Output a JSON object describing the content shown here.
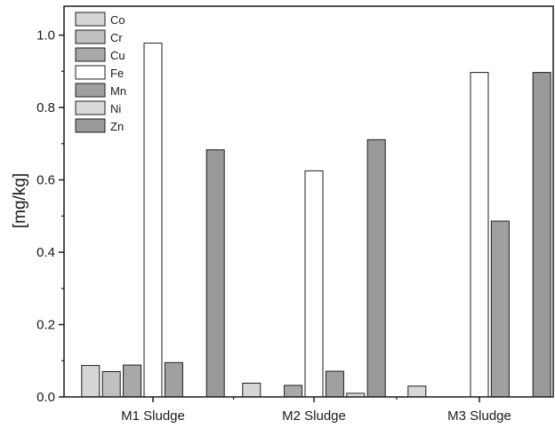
{
  "chart_data": {
    "type": "bar",
    "title": "",
    "xlabel": "",
    "ylabel": "[mg/kg]",
    "ylim": [
      0,
      1.08
    ],
    "yticks": [
      "0.0",
      "0.2",
      "0.4",
      "0.6",
      "0.8",
      "1.0"
    ],
    "categories": [
      "M1 Sludge",
      "M2 Sludge",
      "M3 Sludge"
    ],
    "legend_position": "top-left",
    "grid": false,
    "series": [
      {
        "name": "Co",
        "color": "#d6d6d6",
        "values": [
          0.087,
          0.038,
          0.03
        ]
      },
      {
        "name": "Cr",
        "color": "#c0c0c0",
        "values": [
          0.07,
          0.0,
          0.0
        ]
      },
      {
        "name": "Cu",
        "color": "#a8a8a8",
        "values": [
          0.088,
          0.032,
          0.0
        ]
      },
      {
        "name": "Fe",
        "color": "#ffffff",
        "values": [
          0.978,
          0.625,
          0.897
        ]
      },
      {
        "name": "Mn",
        "color": "#a0a0a0",
        "values": [
          0.095,
          0.071,
          0.486
        ]
      },
      {
        "name": "Ni",
        "color": "#dadada",
        "values": [
          0.0,
          0.01,
          0.0
        ]
      },
      {
        "name": "Zn",
        "color": "#999999",
        "values": [
          0.683,
          0.711,
          0.897
        ]
      }
    ]
  }
}
